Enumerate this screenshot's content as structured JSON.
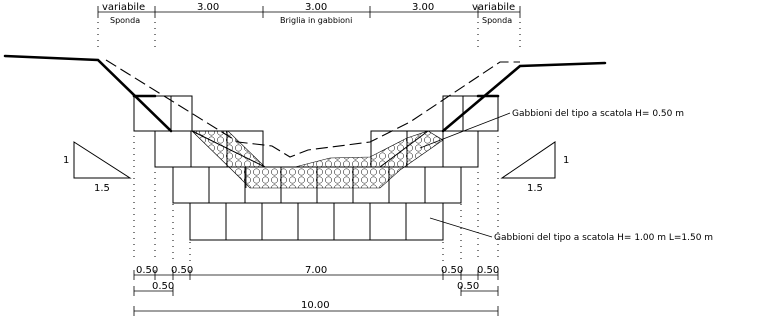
{
  "top_dimensions": {
    "left_variable": "variabile",
    "left_bank": "Sponda",
    "left_span": "3.00",
    "center_span": "3.00",
    "center_label": "Briglia in gabbioni",
    "right_span": "3.00",
    "right_variable": "variabile",
    "right_bank": "Sponda"
  },
  "callouts": {
    "upper": "Gabbioni del tipo a scatola H= 0.50 m",
    "lower": "Gabbioni del tipo a scatola H= 1.00 m L=1.50 m"
  },
  "slopes": {
    "left_rise": "1",
    "left_run": "1.5",
    "right_rise": "1",
    "right_run": "1.5"
  },
  "bottom_dimensions": {
    "row1_left_a": "0.50",
    "row1_left_b": "0.50",
    "row1_center": "7.00",
    "row1_right_a": "0.50",
    "row1_right_b": "0.50",
    "row2_left": "0.50",
    "row2_right": "0.50",
    "total": "10.00"
  }
}
